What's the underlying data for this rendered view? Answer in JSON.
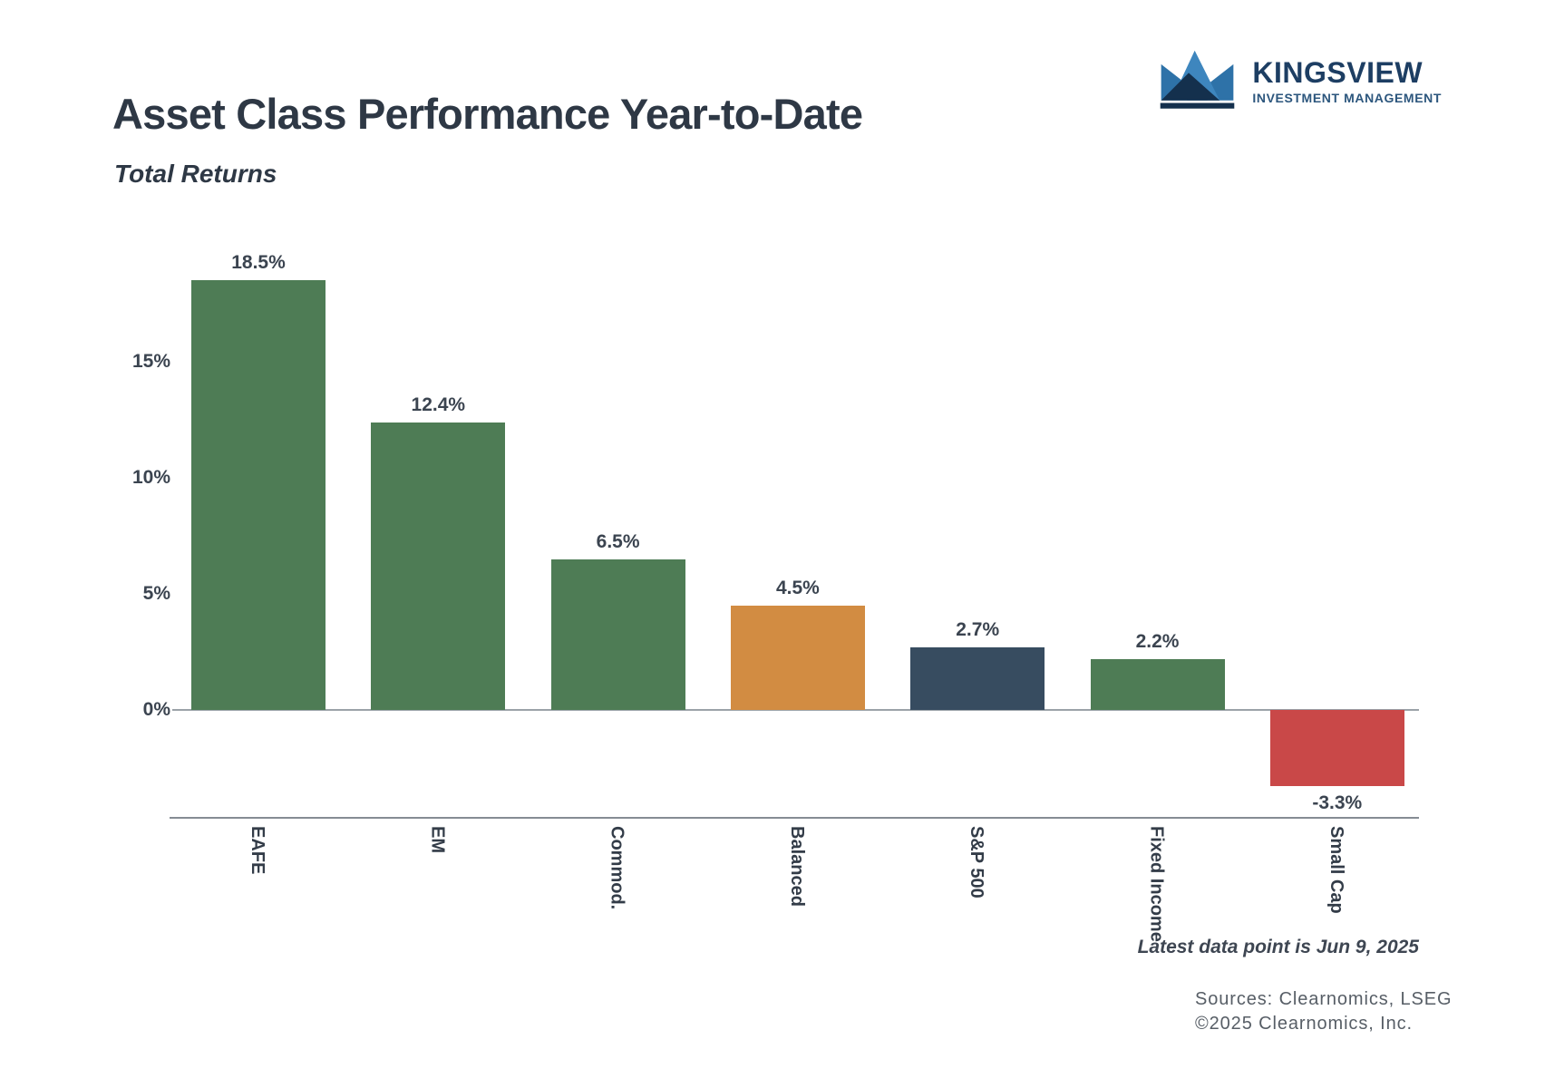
{
  "header": {
    "title": "Asset Class Performance Year-to-Date",
    "subtitle": "Total Returns"
  },
  "logo": {
    "name": "KINGSVIEW",
    "tagline": "INVESTMENT MANAGEMENT",
    "icon": "crown-icon",
    "colors": {
      "navy": "#1D3E63",
      "light_blue": "#3E86BE",
      "mid_blue": "#2E72A8",
      "dark_navy": "#14304D"
    }
  },
  "chart_data": {
    "type": "bar",
    "title": "Asset Class Performance Year-to-Date",
    "subtitle": "Total Returns",
    "categories": [
      "EAFE",
      "EM",
      "Commod.",
      "Balanced",
      "S&P 500",
      "Fixed Income",
      "Small Cap"
    ],
    "values": [
      18.5,
      12.4,
      6.5,
      4.5,
      2.7,
      2.2,
      -3.3
    ],
    "value_labels": [
      "18.5%",
      "12.4%",
      "6.5%",
      "4.5%",
      "2.7%",
      "2.2%",
      "-3.3%"
    ],
    "bar_colors": [
      "#4E7C55",
      "#4E7C55",
      "#4E7C55",
      "#D28C42",
      "#374C60",
      "#4E7C55",
      "#C94848"
    ],
    "xlabel": "",
    "ylabel": "",
    "yticks": [
      0,
      5,
      10,
      15
    ],
    "ytick_labels": [
      "0%",
      "5%",
      "10%",
      "15%"
    ],
    "ylim": [
      -4.6,
      20.2
    ],
    "grid": false,
    "legend": false,
    "zero_line": true,
    "value_label_position": "outside-end",
    "category_label_rotation": 90
  },
  "footer": {
    "latest_note": "Latest data point is Jun 9, 2025",
    "source_line1": "Sources: Clearnomics, LSEG",
    "source_line2": "©2025 Clearnomics, Inc."
  }
}
